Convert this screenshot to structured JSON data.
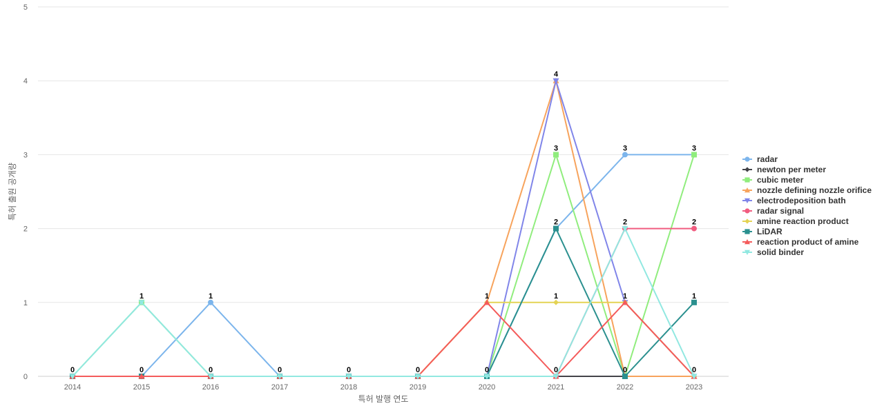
{
  "chart_data": {
    "type": "line",
    "title": "",
    "xlabel": "특허 발행 연도",
    "ylabel": "특허 출원 공개량",
    "x": [
      "2014",
      "2015",
      "2016",
      "2017",
      "2018",
      "2019",
      "2020",
      "2021",
      "2022",
      "2023"
    ],
    "ylim": [
      0,
      5
    ],
    "yticks": [
      0,
      1,
      2,
      3,
      4,
      5
    ],
    "grid": true,
    "legend_position": "right",
    "series": [
      {
        "name": "radar",
        "color": "#7cb5ec",
        "marker": "circle",
        "values": [
          0,
          0,
          1,
          0,
          0,
          0,
          0,
          2,
          3,
          3
        ]
      },
      {
        "name": "newton per meter",
        "color": "#434348",
        "marker": "diamond",
        "values": [
          0,
          0,
          0,
          0,
          0,
          0,
          0,
          0,
          0,
          0
        ]
      },
      {
        "name": "cubic meter",
        "color": "#90ed7d",
        "marker": "square",
        "values": [
          0,
          1,
          0,
          0,
          0,
          0,
          0,
          3,
          0,
          3
        ]
      },
      {
        "name": "nozzle defining nozzle orifice",
        "color": "#f7a35c",
        "marker": "triangle",
        "values": [
          0,
          0,
          0,
          0,
          0,
          0,
          1,
          4,
          0,
          0
        ]
      },
      {
        "name": "electrodeposition bath",
        "color": "#8085e9",
        "marker": "triangle-down",
        "values": [
          0,
          0,
          0,
          0,
          0,
          0,
          0,
          4,
          1,
          0
        ]
      },
      {
        "name": "radar signal",
        "color": "#f15c80",
        "marker": "circle",
        "values": [
          0,
          0,
          0,
          0,
          0,
          0,
          0,
          0,
          2,
          2
        ]
      },
      {
        "name": "amine reaction product",
        "color": "#e4d354",
        "marker": "diamond",
        "values": [
          0,
          0,
          0,
          0,
          0,
          0,
          1,
          1,
          1,
          0
        ]
      },
      {
        "name": "LiDAR",
        "color": "#2b908f",
        "marker": "square",
        "values": [
          0,
          0,
          0,
          0,
          0,
          0,
          0,
          2,
          0,
          1
        ]
      },
      {
        "name": "reaction product of amine",
        "color": "#f45b5b",
        "marker": "triangle",
        "values": [
          0,
          0,
          0,
          0,
          0,
          0,
          1,
          0,
          1,
          0
        ]
      },
      {
        "name": "solid binder",
        "color": "#91e8e1",
        "marker": "triangle-down",
        "values": [
          0,
          1,
          0,
          0,
          0,
          0,
          0,
          0,
          2,
          0
        ]
      }
    ],
    "data_labels": [
      {
        "x": "2014",
        "value": 0
      },
      {
        "x": "2015",
        "value": 1
      },
      {
        "x": "2015",
        "value": 0
      },
      {
        "x": "2016",
        "value": 1
      },
      {
        "x": "2016",
        "value": 0
      },
      {
        "x": "2017",
        "value": 0
      },
      {
        "x": "2018",
        "value": 0
      },
      {
        "x": "2019",
        "value": 0
      },
      {
        "x": "2020",
        "value": 1
      },
      {
        "x": "2020",
        "value": 0
      },
      {
        "x": "2021",
        "value": 4
      },
      {
        "x": "2021",
        "value": 3
      },
      {
        "x": "2021",
        "value": 2
      },
      {
        "x": "2021",
        "value": 1
      },
      {
        "x": "2021",
        "value": 0
      },
      {
        "x": "2022",
        "value": 3
      },
      {
        "x": "2022",
        "value": 2
      },
      {
        "x": "2022",
        "value": 1
      },
      {
        "x": "2022",
        "value": 0
      },
      {
        "x": "2023",
        "value": 3
      },
      {
        "x": "2023",
        "value": 2
      },
      {
        "x": "2023",
        "value": 1
      },
      {
        "x": "2023",
        "value": 0
      }
    ]
  }
}
